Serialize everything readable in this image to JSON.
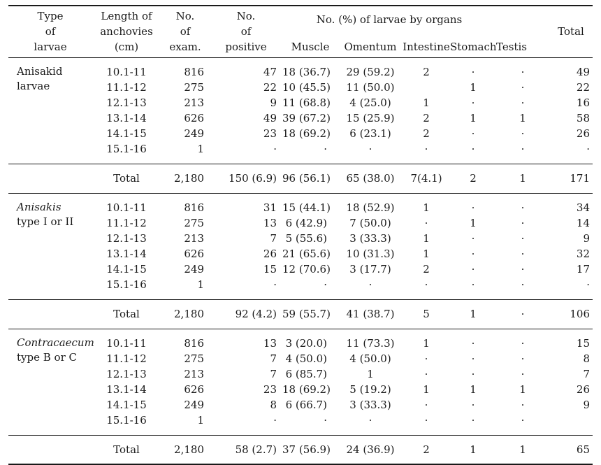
{
  "header": {
    "type": [
      "Type",
      "of",
      "larvae"
    ],
    "length": [
      "Length of",
      "anchovies",
      "(cm)"
    ],
    "exam": [
      "No.",
      "of",
      "exam."
    ],
    "positive": [
      "No.",
      "of",
      "positive"
    ],
    "organs_group": "No. (%) of larvae by organs",
    "muscle": "Muscle",
    "omentum": "Omentum",
    "intestine": "Intestine",
    "stomach": "Stomach",
    "testis": "Testis",
    "total": "Total"
  },
  "groups": [
    {
      "type_lines": [
        "Anisakid",
        "larvae"
      ],
      "italic_first": false,
      "rows": [
        {
          "length": "10.1-11",
          "exam": "816",
          "positive": "47",
          "muscle": "18 (36.7)",
          "omentum": "29 (59.2)",
          "intestine": "2",
          "stomach": "·",
          "testis": "·",
          "total": "49"
        },
        {
          "length": "11.1-12",
          "exam": "275",
          "positive": "22",
          "muscle": "10 (45.5)",
          "omentum": "11 (50.0)",
          "intestine": "",
          "stomach": "1",
          "testis": "·",
          "total": "22"
        },
        {
          "length": "12.1-13",
          "exam": "213",
          "positive": "9",
          "muscle": "11 (68.8)",
          "omentum": "4 (25.0)",
          "intestine": "1",
          "stomach": "·",
          "testis": "·",
          "total": "16"
        },
        {
          "length": "13.1-14",
          "exam": "626",
          "positive": "49",
          "muscle": "39 (67.2)",
          "omentum": "15 (25.9)",
          "intestine": "2",
          "stomach": "1",
          "testis": "1",
          "total": "58"
        },
        {
          "length": "14.1-15",
          "exam": "249",
          "positive": "23",
          "muscle": "18 (69.2)",
          "omentum": "6 (23.1)",
          "intestine": "2",
          "stomach": "·",
          "testis": "·",
          "total": "26"
        },
        {
          "length": "15.1-16",
          "exam": "1",
          "positive": "·",
          "muscle": "·",
          "omentum": "·",
          "intestine": "·",
          "stomach": "·",
          "testis": "·",
          "total": "·"
        }
      ],
      "total": {
        "label": "Total",
        "exam": "2,180",
        "positive": "150 (6.9)",
        "muscle": "96 (56.1)",
        "omentum": "65 (38.0)",
        "intestine": "7(4.1)",
        "stomach": "2",
        "testis": "1",
        "total": "171"
      }
    },
    {
      "type_lines": [
        "Anisakis",
        "type I or II"
      ],
      "italic_first": true,
      "rows": [
        {
          "length": "10.1-11",
          "exam": "816",
          "positive": "31",
          "muscle": "15 (44.1)",
          "omentum": "18 (52.9)",
          "intestine": "1",
          "stomach": "·",
          "testis": "·",
          "total": "34"
        },
        {
          "length": "11.1-12",
          "exam": "275",
          "positive": "13",
          "muscle": "6 (42.9)",
          "omentum": "7 (50.0)",
          "intestine": "·",
          "stomach": "1",
          "testis": "·",
          "total": "14"
        },
        {
          "length": "12.1-13",
          "exam": "213",
          "positive": "7",
          "muscle": "5 (55.6)",
          "omentum": "3 (33.3)",
          "intestine": "1",
          "stomach": "·",
          "testis": "·",
          "total": "9"
        },
        {
          "length": "13.1-14",
          "exam": "626",
          "positive": "26",
          "muscle": "21 (65.6)",
          "omentum": "10 (31.3)",
          "intestine": "1",
          "stomach": "·",
          "testis": "·",
          "total": "32"
        },
        {
          "length": "14.1-15",
          "exam": "249",
          "positive": "15",
          "muscle": "12 (70.6)",
          "omentum": "3 (17.7)",
          "intestine": "2",
          "stomach": "·",
          "testis": "·",
          "total": "17"
        },
        {
          "length": "15.1-16",
          "exam": "1",
          "positive": "·",
          "muscle": "·",
          "omentum": "·",
          "intestine": "·",
          "stomach": "·",
          "testis": "·",
          "total": "·"
        }
      ],
      "total": {
        "label": "Total",
        "exam": "2,180",
        "positive": "92 (4.2)",
        "muscle": "59 (55.7)",
        "omentum": "41 (38.7)",
        "intestine": "5",
        "stomach": "1",
        "testis": "·",
        "total": "106"
      }
    },
    {
      "type_lines": [
        "Contracaecum",
        "type B or C"
      ],
      "italic_first": true,
      "rows": [
        {
          "length": "10.1-11",
          "exam": "816",
          "positive": "13",
          "muscle": "3 (20.0)",
          "omentum": "11 (73.3)",
          "intestine": "1",
          "stomach": "·",
          "testis": "·",
          "total": "15"
        },
        {
          "length": "11.1-12",
          "exam": "275",
          "positive": "7",
          "muscle": "4 (50.0)",
          "omentum": "4 (50.0)",
          "intestine": "·",
          "stomach": "·",
          "testis": "·",
          "total": "8"
        },
        {
          "length": "12.1-13",
          "exam": "213",
          "positive": "7",
          "muscle": "6 (85.7)",
          "omentum": "1",
          "intestine": "·",
          "stomach": "·",
          "testis": "·",
          "total": "7"
        },
        {
          "length": "13.1-14",
          "exam": "626",
          "positive": "23",
          "muscle": "18 (69.2)",
          "omentum": "5 (19.2)",
          "intestine": "1",
          "stomach": "1",
          "testis": "1",
          "total": "26"
        },
        {
          "length": "14.1-15",
          "exam": "249",
          "positive": "8",
          "muscle": "6 (66.7)",
          "omentum": "3 (33.3)",
          "intestine": "·",
          "stomach": "·",
          "testis": "·",
          "total": "9"
        },
        {
          "length": "15.1-16",
          "exam": "1",
          "positive": "·",
          "muscle": "·",
          "omentum": "·",
          "intestine": "·",
          "stomach": "·",
          "testis": "·",
          "total": ""
        }
      ],
      "total": {
        "label": "Total",
        "exam": "2,180",
        "positive": "58 (2.7)",
        "muscle": "37 (56.9)",
        "omentum": "24 (36.9)",
        "intestine": "2",
        "stomach": "1",
        "testis": "1",
        "total": "65"
      }
    }
  ]
}
